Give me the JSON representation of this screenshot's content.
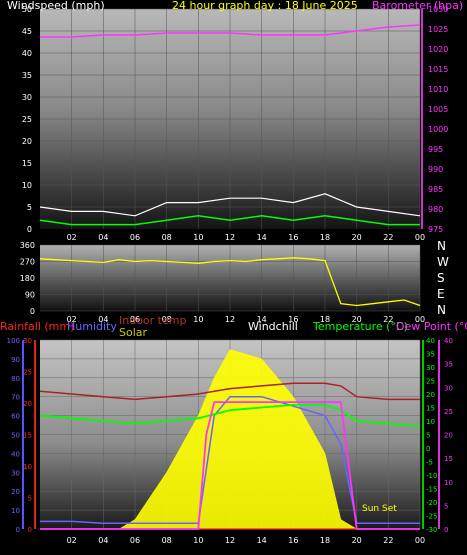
{
  "header": {
    "windspeed_label": "Windspeed (mph)",
    "title": "24 hour graph day : 18 June 2025",
    "barometer_label": "Barometer (hpa)"
  },
  "middle_header": {
    "rainfall_label": "Rainfall (mm)",
    "humidity_label": "Humidity",
    "indoor_label": "Indoor temp",
    "solar_label": "Solar",
    "windchill_label": "Windchill",
    "temperature_label": "Temperature (°C)",
    "dewpoint_label": "Dew Point (°C)"
  },
  "compass": [
    "N",
    "W",
    "S",
    "E",
    "N"
  ],
  "annotation": "Sun Set",
  "colors": {
    "wind": "#ffffff",
    "gust": "#00ff00",
    "barometer": "#ff33ff",
    "direction": "#ffff00",
    "rain": "#ff2222",
    "humidity": "#6666ff",
    "indoor": "#aa2222",
    "solar": "#ffff00",
    "windchill": "#ffffff",
    "temperature": "#00ff00",
    "dewpoint": "#ff33ff"
  },
  "chart_data": [
    {
      "type": "line",
      "title": "24 hour graph day : 18 June 2025",
      "x_ticks": [
        "02",
        "04",
        "06",
        "08",
        "10",
        "12",
        "14",
        "16",
        "18",
        "20",
        "22",
        "00"
      ],
      "y_left_label": "Windspeed (mph)",
      "y_left_ticks": [
        "0",
        "5",
        "10",
        "15",
        "20",
        "25",
        "30",
        "35",
        "40",
        "45",
        "50"
      ],
      "y_left_lim": [
        0,
        50
      ],
      "y_right_label": "Barometer (hpa)",
      "y_right_ticks": [
        "975",
        "980",
        "985",
        "990",
        "995",
        "1000",
        "1005",
        "1010",
        "1015",
        "1020",
        "1025",
        "1030"
      ],
      "y_right_lim": [
        975,
        1030
      ],
      "series": [
        {
          "name": "Barometer",
          "axis": "right",
          "x": [
            0,
            2,
            4,
            6,
            8,
            10,
            12,
            14,
            16,
            18,
            20,
            22,
            24
          ],
          "values": [
            1023,
            1023,
            1023.5,
            1023.5,
            1024,
            1024,
            1024,
            1023.5,
            1023.5,
            1023.5,
            1024.5,
            1025.5,
            1026
          ]
        },
        {
          "axis": "left",
          "x": [
            0,
            2,
            4,
            6,
            8,
            10,
            12,
            14,
            16,
            18,
            20,
            22,
            24
          ],
          "values": [
            5,
            4,
            4,
            3,
            6,
            6,
            7,
            7,
            6,
            8,
            5,
            4,
            3
          ]
        },
        {
          "axis": "left",
          "x": [
            0,
            2,
            4,
            6,
            8,
            10,
            12,
            14,
            16,
            18,
            20,
            22,
            24
          ],
          "values": [
            2,
            1,
            1,
            1,
            2,
            3,
            2,
            3,
            2,
            3,
            2,
            1,
            1
          ]
        }
      ]
    },
    {
      "type": "line",
      "x_ticks": [
        "02",
        "04",
        "06",
        "08",
        "10",
        "12",
        "14",
        "16",
        "18",
        "20",
        "22",
        "00"
      ],
      "y_ticks": [
        "0",
        "90",
        "180",
        "270",
        "360"
      ],
      "ylim": [
        0,
        360
      ],
      "series": [
        {
          "x": [
            0,
            1,
            2,
            3,
            4,
            5,
            6,
            7,
            8,
            9,
            10,
            11,
            12,
            13,
            14,
            15,
            16,
            17,
            18,
            19,
            20,
            21,
            22,
            23,
            24
          ],
          "values": [
            285,
            280,
            275,
            270,
            265,
            280,
            270,
            275,
            270,
            265,
            260,
            270,
            275,
            270,
            280,
            285,
            290,
            285,
            275,
            40,
            30,
            40,
            50,
            60,
            30
          ]
        }
      ]
    },
    {
      "type": "line",
      "x_ticks": [
        "02",
        "04",
        "06",
        "08",
        "10",
        "12",
        "14",
        "16",
        "18",
        "20",
        "22",
        "00"
      ],
      "y_left_ticks": [
        "0",
        "10",
        "20",
        "30",
        "40",
        "50",
        "60",
        "70",
        "80",
        "90",
        "100"
      ],
      "y_rain_ticks": [
        "0",
        "5",
        "10",
        "15",
        "20",
        "25",
        "30"
      ],
      "y_temp_ticks": [
        "-30",
        "-25",
        "-20",
        "-15",
        "-10",
        "-5",
        "0",
        "5",
        "10",
        "15",
        "20",
        "25",
        "30",
        "35",
        "40"
      ],
      "y_right_ticks": [
        "0",
        "5",
        "10",
        "15",
        "20",
        "25",
        "30",
        "35",
        "40"
      ],
      "series": [
        {
          "name": "Humidity",
          "x": [
            0,
            2,
            4,
            6,
            8,
            10,
            11,
            12,
            14,
            16,
            18,
            19,
            20,
            22,
            24
          ],
          "values": [
            4,
            4,
            3,
            3,
            3,
            3,
            60,
            70,
            70,
            65,
            60,
            45,
            3,
            3,
            3
          ]
        },
        {
          "name": "Indoor temp",
          "x": [
            0,
            2,
            4,
            6,
            8,
            10,
            12,
            14,
            16,
            18,
            19,
            20,
            22,
            24
          ],
          "values": [
            21,
            20,
            19,
            18,
            19,
            20,
            22,
            23,
            24,
            24,
            23,
            19,
            18,
            18
          ]
        },
        {
          "name": "Solar",
          "x": [
            0,
            5,
            6,
            8,
            10,
            11,
            12,
            14,
            16,
            18,
            19,
            20,
            24
          ],
          "values": [
            0,
            0,
            5,
            30,
            60,
            80,
            95,
            90,
            70,
            40,
            5,
            0,
            0
          ]
        },
        {
          "name": "Windchill",
          "x": [
            0,
            24
          ],
          "values": [
            0,
            0
          ]
        },
        {
          "name": "Temperature (°C)",
          "x": [
            0,
            2,
            4,
            6,
            8,
            10,
            12,
            14,
            16,
            18,
            19,
            20,
            22,
            24
          ],
          "values": [
            12,
            11,
            10,
            9,
            10,
            11,
            14,
            15,
            16,
            16,
            14,
            10,
            9,
            8
          ]
        },
        {
          "name": "Dew Point (°C)",
          "x": [
            0,
            2,
            4,
            6,
            8,
            10,
            10.5,
            11,
            12,
            14,
            16,
            18,
            19,
            20,
            22,
            24
          ],
          "values": [
            -30,
            -30,
            -30,
            -30,
            -30,
            -30,
            5,
            17,
            17,
            17,
            17,
            17,
            17,
            -30,
            -30,
            -30
          ]
        }
      ]
    }
  ]
}
